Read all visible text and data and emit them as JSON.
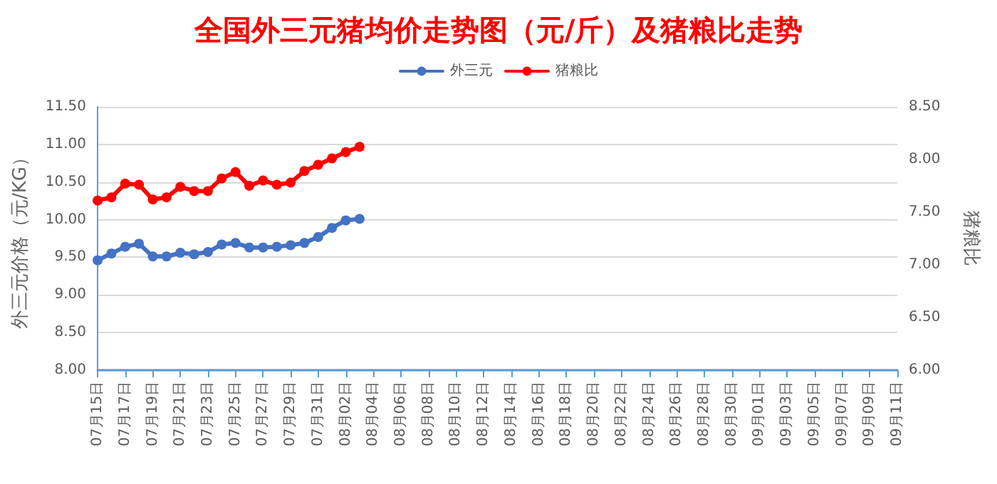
{
  "chart_data": {
    "type": "line",
    "title": "全国外三元猪均价走势图（元/斤）及猪粮比走势",
    "ylabel": "外三元价格（元/KG）",
    "y2label": "猪粮比",
    "categories": [
      "07月15日",
      null,
      "07月17日",
      null,
      "07月19日",
      null,
      "07月21日",
      null,
      "07月23日",
      null,
      "07月25日",
      null,
      "07月27日",
      null,
      "07月29日",
      null,
      "07月31日",
      null,
      "08月02日",
      null,
      "08月04日",
      null,
      "08月06日",
      null,
      "08月08日",
      null,
      "08月10日",
      null,
      "08月12日",
      null,
      "08月14日",
      null,
      "08月16日",
      null,
      "08月18日",
      null,
      "08月20日",
      null,
      "08月22日",
      null,
      "08月24日",
      null,
      "08月26日",
      null,
      "08月28日",
      null,
      "08月30日",
      null,
      "09月01日",
      null,
      "09月03日",
      null,
      "09月05日",
      null,
      "09月07日",
      null,
      "09月09日",
      null,
      "09月11日"
    ],
    "series": [
      {
        "name": "外三元",
        "color": "#4472c4",
        "values": [
          9.46,
          9.55,
          9.64,
          9.68,
          9.51,
          9.51,
          9.56,
          9.54,
          9.57,
          9.67,
          9.69,
          9.63,
          9.63,
          9.64,
          9.66,
          9.69,
          9.77,
          9.89,
          9.99,
          10.01,
          null,
          null,
          null,
          null,
          null,
          null,
          null,
          null,
          null,
          null,
          null,
          null,
          null,
          null,
          null,
          null,
          null,
          null,
          null,
          null,
          null,
          null,
          null,
          null,
          null,
          null,
          null,
          null,
          null,
          null,
          null,
          null,
          null,
          null,
          null,
          null,
          null,
          null,
          null
        ]
      },
      {
        "name": "猪粮比",
        "color": "#ff0000",
        "axis": "y2",
        "values": [
          7.61,
          7.64,
          7.77,
          7.76,
          7.62,
          7.64,
          7.74,
          7.7,
          7.7,
          7.82,
          7.88,
          7.75,
          7.8,
          7.76,
          7.78,
          7.89,
          7.95,
          8.01,
          8.07,
          8.12,
          null,
          null,
          null,
          null,
          null,
          null,
          null,
          null,
          null,
          null,
          null,
          null,
          null,
          null,
          null,
          null,
          null,
          null,
          null,
          null,
          null,
          null,
          null,
          null,
          null,
          null,
          null,
          null,
          null,
          null,
          null,
          null,
          null,
          null,
          null,
          null,
          null,
          null,
          null
        ]
      }
    ],
    "ylim": [
      8,
      11.5
    ],
    "yticks": [
      {
        "value": 8,
        "label": "8.00"
      },
      {
        "value": 8.5,
        "label": "8.50"
      },
      {
        "value": 9,
        "label": "9.00"
      },
      {
        "value": 9.5,
        "label": "9.50"
      },
      {
        "value": 10,
        "label": "10.00"
      },
      {
        "value": 10.5,
        "label": "10.50"
      },
      {
        "value": 11,
        "label": "11.00"
      },
      {
        "value": 11.5,
        "label": "11.50"
      }
    ],
    "y2lim": [
      6,
      8.5
    ],
    "y2ticks": [
      {
        "value": 6,
        "label": "6.00"
      },
      {
        "value": 6.5,
        "label": "6.50"
      },
      {
        "value": 7,
        "label": "7.00"
      },
      {
        "value": 7.5,
        "label": "7.50"
      },
      {
        "value": 8,
        "label": "8.00"
      },
      {
        "value": 8.5,
        "label": "8.50"
      }
    ],
    "grid": "y",
    "legend": "top",
    "marker": "circle",
    "line_style": "solid"
  }
}
